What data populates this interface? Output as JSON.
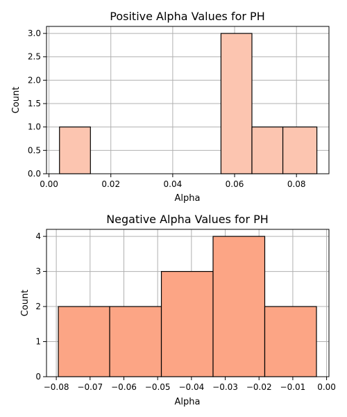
{
  "chart_data": [
    {
      "type": "bar",
      "title": "Positive Alpha Values for PH",
      "xlabel": "Alpha",
      "ylabel": "Count",
      "bar_color": "#fcc5b0",
      "xlim": [
        -0.0008,
        0.0905
      ],
      "ylim": [
        0,
        3.15
      ],
      "xticks": [
        0.0,
        0.02,
        0.04,
        0.06,
        0.08
      ],
      "xtick_labels": [
        "0.00",
        "0.02",
        "0.04",
        "0.06",
        "0.08"
      ],
      "yticks": [
        0.0,
        0.5,
        1.0,
        1.5,
        2.0,
        2.5,
        3.0
      ],
      "ytick_labels": [
        "0.0",
        "0.5",
        "1.0",
        "1.5",
        "2.0",
        "2.5",
        "3.0"
      ],
      "grid": true,
      "bins": [
        {
          "start": 0.0034,
          "end": 0.0134,
          "count": 1
        },
        {
          "start": 0.0134,
          "end": 0.0234,
          "count": 0
        },
        {
          "start": 0.0234,
          "end": 0.0334,
          "count": 0
        },
        {
          "start": 0.0334,
          "end": 0.0434,
          "count": 0
        },
        {
          "start": 0.0434,
          "end": 0.0556,
          "count": 0
        },
        {
          "start": 0.0556,
          "end": 0.0656,
          "count": 3
        },
        {
          "start": 0.0656,
          "end": 0.0756,
          "count": 1
        },
        {
          "start": 0.0756,
          "end": 0.0866,
          "count": 1
        }
      ]
    },
    {
      "type": "bar",
      "title": "Negative Alpha Values for PH",
      "xlabel": "Alpha",
      "ylabel": "Count",
      "bar_color": "#fca585",
      "xlim": [
        -0.0829,
        0.0007
      ],
      "ylim": [
        0,
        4.2
      ],
      "xticks": [
        -0.08,
        -0.07,
        -0.06,
        -0.05,
        -0.04,
        -0.03,
        -0.02,
        -0.01,
        0.0
      ],
      "xtick_labels": [
        "−0.08",
        "−0.07",
        "−0.06",
        "−0.05",
        "−0.04",
        "−0.03",
        "−0.02",
        "−0.01",
        "0.00"
      ],
      "yticks": [
        0,
        1,
        2,
        3,
        4
      ],
      "ytick_labels": [
        "0",
        "1",
        "2",
        "3",
        "4"
      ],
      "grid": true,
      "bins": [
        {
          "start": -0.0794,
          "end": -0.0642,
          "count": 2
        },
        {
          "start": -0.0642,
          "end": -0.0489,
          "count": 2
        },
        {
          "start": -0.0489,
          "end": -0.0336,
          "count": 3
        },
        {
          "start": -0.0336,
          "end": -0.0183,
          "count": 4
        },
        {
          "start": -0.0183,
          "end": -0.003,
          "count": 2
        }
      ]
    }
  ]
}
